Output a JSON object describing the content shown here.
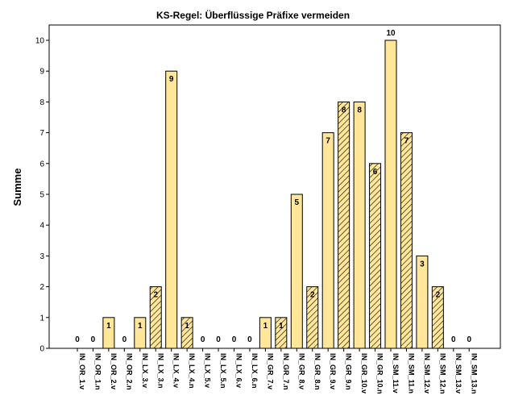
{
  "chart_data": {
    "type": "bar",
    "title": "KS-Regel: Überflüssige Präfixe vermeiden",
    "xlabel": "",
    "ylabel": "Summe",
    "ylim": [
      0,
      11
    ],
    "yticks": [
      0,
      1,
      2,
      3,
      4,
      5,
      6,
      7,
      8,
      9,
      10
    ],
    "grid": false,
    "legend": "none",
    "colors": {
      "fill": "#ffe699",
      "stroke": "#000000",
      "hatch": "#000000",
      "background": "#ffffff"
    },
    "categories": [
      "IN_OR_1.v",
      "IN_OR_1.n",
      "IN_OR_2.v",
      "IN_OR_2.n",
      "IN_LX_3.v",
      "IN_LX_3.n",
      "IN_LX_4.v",
      "IN_LX_4.n",
      "IN_LX_5.v",
      "IN_LX_5.n",
      "IN_LX_6.v",
      "IN_LX_6.n",
      "IN_GR_7.v",
      "IN_GR_7.n",
      "IN_GR_8.v",
      "IN_GR_8.n",
      "IN_GR_9.v",
      "IN_GR_9.n",
      "IN_GR_10.v",
      "IN_GR_10.n",
      "IN_SM_11.v",
      "IN_SM_11.n",
      "IN_SM_12.v",
      "IN_SM_12.n",
      "IN_SM_13.v",
      "IN_SM_13.n"
    ],
    "values": [
      0,
      0,
      1,
      0,
      1,
      2,
      9,
      1,
      0,
      0,
      0,
      0,
      1,
      1,
      5,
      2,
      7,
      8,
      8,
      6,
      10,
      7,
      3,
      2,
      0,
      0
    ],
    "hatched": [
      false,
      true,
      false,
      true,
      false,
      true,
      false,
      true,
      false,
      true,
      false,
      true,
      false,
      true,
      false,
      true,
      false,
      true,
      false,
      true,
      false,
      true,
      false,
      true,
      false,
      true
    ],
    "data_labels": [
      "0",
      "0",
      "1",
      "0",
      "1",
      "2",
      "9",
      "1",
      "0",
      "0",
      "0",
      "0",
      "1",
      "1",
      "5",
      "2",
      "7",
      "8",
      "8",
      "6",
      "10",
      "7",
      "3",
      "2",
      "0",
      "0"
    ]
  }
}
